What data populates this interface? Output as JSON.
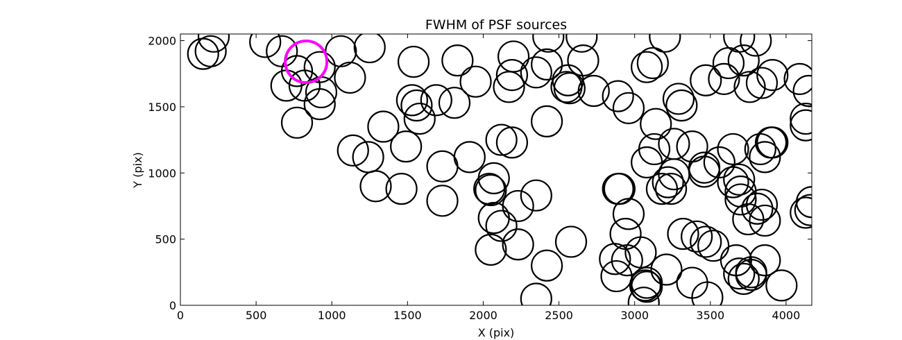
{
  "chart_data": {
    "type": "scatter",
    "title": "FWHM of PSF sources",
    "xlabel": "X (pix)",
    "ylabel": "Y (pix)",
    "xlim": [
      0,
      4170
    ],
    "ylim": [
      0,
      2050
    ],
    "xticks": [
      0,
      500,
      1000,
      1500,
      2000,
      2500,
      3000,
      3500,
      4000
    ],
    "yticks": [
      0,
      500,
      1000,
      1500,
      2000
    ],
    "marker": "open circle",
    "grid": false,
    "colors": {
      "default": "#000000",
      "highlight": "#ff00ff"
    },
    "highlight": {
      "x": 830,
      "y": 1840
    },
    "points": [
      [
        150,
        1900
      ],
      [
        200,
        1920
      ],
      [
        220,
        2030
      ],
      [
        560,
        1990
      ],
      [
        670,
        1920
      ],
      [
        770,
        1770
      ],
      [
        700,
        1660
      ],
      [
        820,
        1660
      ],
      [
        920,
        1800
      ],
      [
        930,
        1610
      ],
      [
        920,
        1520
      ],
      [
        770,
        1380
      ],
      [
        1060,
        1920
      ],
      [
        1120,
        1720
      ],
      [
        1250,
        1950
      ],
      [
        1540,
        1840
      ],
      [
        1830,
        1850
      ],
      [
        1950,
        1690
      ],
      [
        1530,
        1550
      ],
      [
        1560,
        1510
      ],
      [
        1580,
        1410
      ],
      [
        1690,
        1550
      ],
      [
        1810,
        1530
      ],
      [
        1340,
        1350
      ],
      [
        1490,
        1200
      ],
      [
        1140,
        1170
      ],
      [
        1240,
        1120
      ],
      [
        1290,
        900
      ],
      [
        1460,
        880
      ],
      [
        1730,
        1050
      ],
      [
        1730,
        790
      ],
      [
        1910,
        1120
      ],
      [
        2120,
        1250
      ],
      [
        2190,
        1230
      ],
      [
        2070,
        960
      ],
      [
        2040,
        880
      ],
      [
        2050,
        870
      ],
      [
        2070,
        660
      ],
      [
        2120,
        600
      ],
      [
        2230,
        750
      ],
      [
        2050,
        420
      ],
      [
        2230,
        460
      ],
      [
        2350,
        830
      ],
      [
        2420,
        1390
      ],
      [
        2200,
        1880
      ],
      [
        2190,
        1740
      ],
      [
        2170,
        1650
      ],
      [
        2350,
        1760
      ],
      [
        2420,
        1820
      ],
      [
        2430,
        2030
      ],
      [
        2560,
        1700
      ],
      [
        2550,
        1650
      ],
      [
        2570,
        1640
      ],
      [
        2650,
        2030
      ],
      [
        2660,
        1850
      ],
      [
        2730,
        1620
      ],
      [
        2580,
        480
      ],
      [
        2420,
        300
      ],
      [
        2350,
        50
      ],
      [
        2890,
        1580
      ],
      [
        2960,
        1490
      ],
      [
        2890,
        880
      ],
      [
        2900,
        880
      ],
      [
        2960,
        690
      ],
      [
        2940,
        540
      ],
      [
        3040,
        400
      ],
      [
        2870,
        350
      ],
      [
        2950,
        340
      ],
      [
        2880,
        220
      ],
      [
        3080,
        170
      ],
      [
        3070,
        150
      ],
      [
        3080,
        140
      ],
      [
        3060,
        20
      ],
      [
        3200,
        2030
      ],
      [
        3080,
        1800
      ],
      [
        3120,
        1830
      ],
      [
        3140,
        1370
      ],
      [
        3130,
        1180
      ],
      [
        3080,
        1080
      ],
      [
        3260,
        1220
      ],
      [
        3220,
        930
      ],
      [
        3240,
        880
      ],
      [
        3180,
        880
      ],
      [
        3260,
        990
      ],
      [
        3210,
        270
      ],
      [
        3290,
        1560
      ],
      [
        3310,
        1510
      ],
      [
        3380,
        1200
      ],
      [
        3460,
        1040
      ],
      [
        3460,
        1010
      ],
      [
        3320,
        540
      ],
      [
        3410,
        520
      ],
      [
        3470,
        480
      ],
      [
        3520,
        450
      ],
      [
        3380,
        170
      ],
      [
        3480,
        60
      ],
      [
        3470,
        1700
      ],
      [
        3590,
        1710
      ],
      [
        3620,
        1830
      ],
      [
        3560,
        1080
      ],
      [
        3650,
        1180
      ],
      [
        3650,
        930
      ],
      [
        3690,
        950
      ],
      [
        3700,
        860
      ],
      [
        3700,
        800
      ],
      [
        3750,
        650
      ],
      [
        3670,
        340
      ],
      [
        3690,
        240
      ],
      [
        3720,
        200
      ],
      [
        3770,
        250
      ],
      [
        3770,
        230
      ],
      [
        3860,
        340
      ],
      [
        3970,
        150
      ],
      [
        3690,
        2030
      ],
      [
        3720,
        1850
      ],
      [
        3800,
        2000
      ],
      [
        3760,
        1650
      ],
      [
        3840,
        1680
      ],
      [
        3910,
        1740
      ],
      [
        3830,
        1180
      ],
      [
        3860,
        1120
      ],
      [
        3900,
        1230
      ],
      [
        3910,
        1230
      ],
      [
        3840,
        760
      ],
      [
        3810,
        730
      ],
      [
        3860,
        640
      ],
      [
        4090,
        1710
      ],
      [
        4150,
        1620
      ],
      [
        4130,
        1410
      ],
      [
        4130,
        1360
      ],
      [
        4170,
        780
      ],
      [
        4160,
        720
      ],
      [
        4130,
        700
      ]
    ]
  }
}
